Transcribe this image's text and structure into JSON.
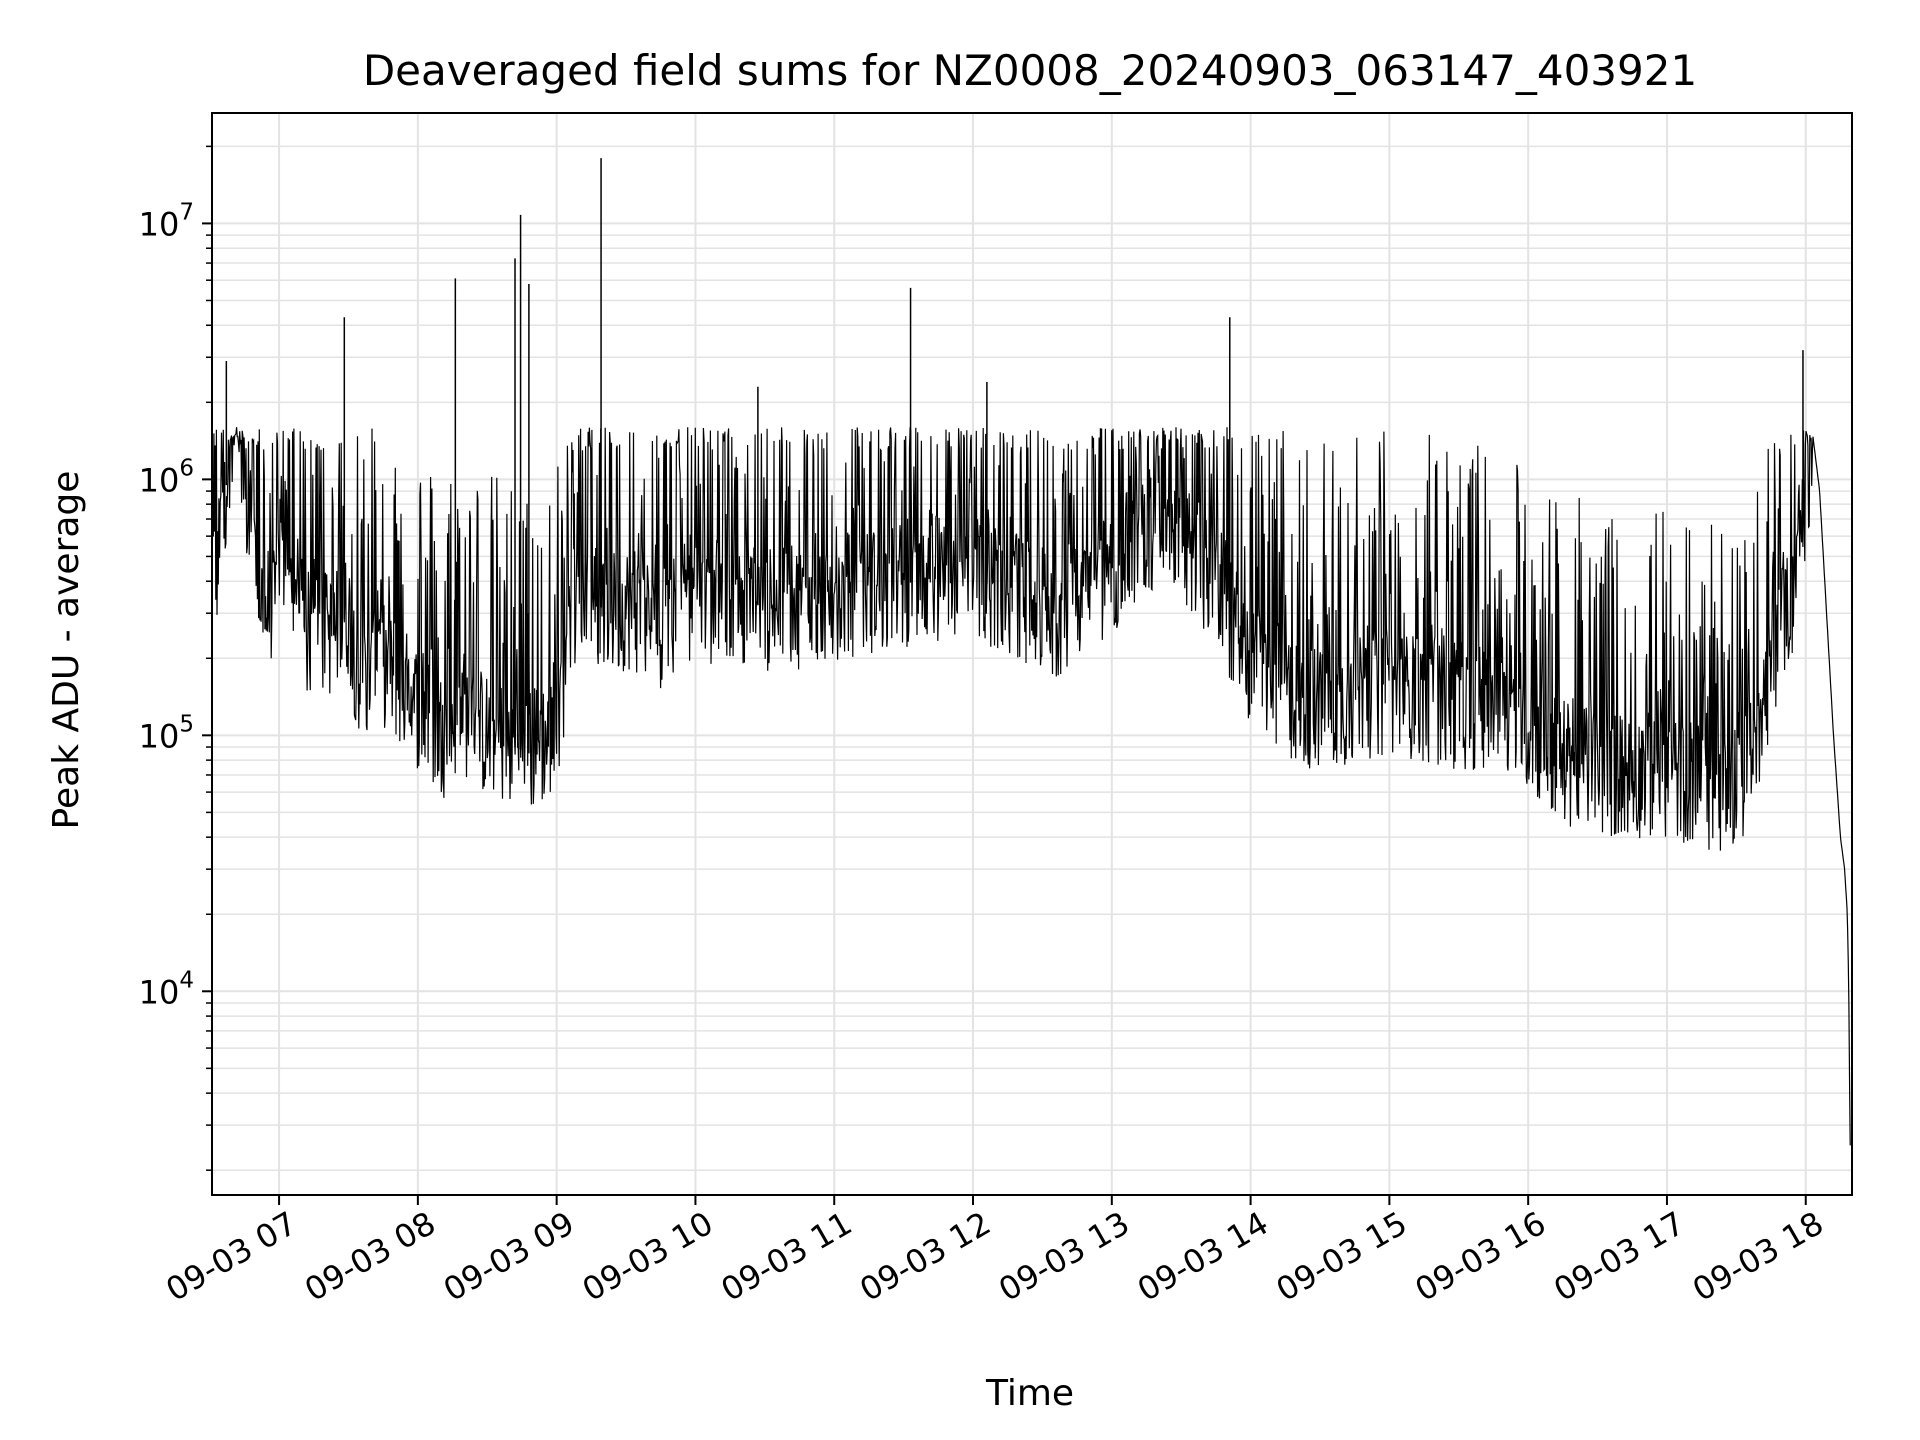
{
  "chart_data": {
    "type": "line",
    "title": "Deaveraged field sums for NZ0008_20240903_063147_403921",
    "xlabel": "Time",
    "ylabel": "Peak ADU - average",
    "yscale": "log",
    "ylim": [
      1600,
      27000000
    ],
    "xlim": [
      "2024-09-03 06:31",
      "2024-09-03 18:20"
    ],
    "grid": true,
    "line_color": "#000000",
    "x_ticks": [
      "09-03 07",
      "09-03 08",
      "09-03 09",
      "09-03 10",
      "09-03 11",
      "09-03 12",
      "09-03 13",
      "09-03 14",
      "09-03 15",
      "09-03 16",
      "09-03 17",
      "09-03 18"
    ],
    "y_ticks": [
      {
        "base": "10",
        "exp": "4",
        "value": 10000
      },
      {
        "base": "10",
        "exp": "5",
        "value": 100000
      },
      {
        "base": "10",
        "exp": "6",
        "value": 1000000
      },
      {
        "base": "10",
        "exp": "7",
        "value": 10000000
      }
    ],
    "series": [
      {
        "x_hours": [
          6.52,
          6.55,
          6.6,
          6.65,
          6.7,
          6.72,
          6.75,
          6.8,
          6.85,
          6.9,
          6.95,
          7.0,
          7.1,
          7.2,
          7.3,
          7.4,
          7.5,
          7.55,
          7.6,
          7.7,
          7.8,
          7.9,
          8.0,
          8.1,
          8.2,
          8.3,
          8.4,
          8.5,
          8.6,
          8.7,
          8.8,
          8.9,
          9.0,
          9.1,
          9.2,
          9.3,
          9.4,
          9.5,
          9.6,
          9.7,
          9.8,
          9.9,
          10.0,
          10.2,
          10.4,
          10.6,
          10.8,
          11.0,
          11.2,
          11.4,
          11.6,
          11.8,
          12.0,
          12.2,
          12.4,
          12.6,
          12.8,
          13.0,
          13.2,
          13.4,
          13.6,
          13.8,
          14.0,
          14.2,
          14.4,
          14.6,
          14.8,
          15.0,
          15.2,
          15.4,
          15.6,
          15.8,
          16.0,
          16.2,
          16.4,
          16.6,
          16.8,
          17.0,
          17.2,
          17.4,
          17.6,
          17.8,
          17.9,
          18.0,
          18.05,
          18.1,
          18.15,
          18.2,
          18.25,
          18.28,
          18.3,
          18.31,
          18.32
        ],
        "y": [
          500000,
          450000,
          700000,
          1500000,
          2500000,
          1800000,
          900000,
          600000,
          400000,
          300000,
          350000,
          500000,
          350000,
          250000,
          250000,
          250000,
          300000,
          200000,
          150000,
          200000,
          180000,
          150000,
          130000,
          110000,
          100000,
          130000,
          110000,
          100000,
          95000,
          90000,
          85000,
          95000,
          100000,
          300000,
          350000,
          320000,
          300000,
          320000,
          300000,
          280000,
          260000,
          280000,
          320000,
          350000,
          330000,
          300000,
          330000,
          350000,
          360000,
          380000,
          400000,
          420000,
          400000,
          380000,
          330000,
          300000,
          350000,
          450000,
          550000,
          600000,
          500000,
          350000,
          180000,
          150000,
          130000,
          130000,
          140000,
          150000,
          140000,
          130000,
          130000,
          120000,
          110000,
          80000,
          75000,
          70000,
          70000,
          70000,
          65000,
          60000,
          75000,
          250000,
          350000,
          900000,
          1500000,
          900000,
          300000,
          100000,
          40000,
          30000,
          20000,
          10000,
          2500
        ]
      }
    ]
  }
}
